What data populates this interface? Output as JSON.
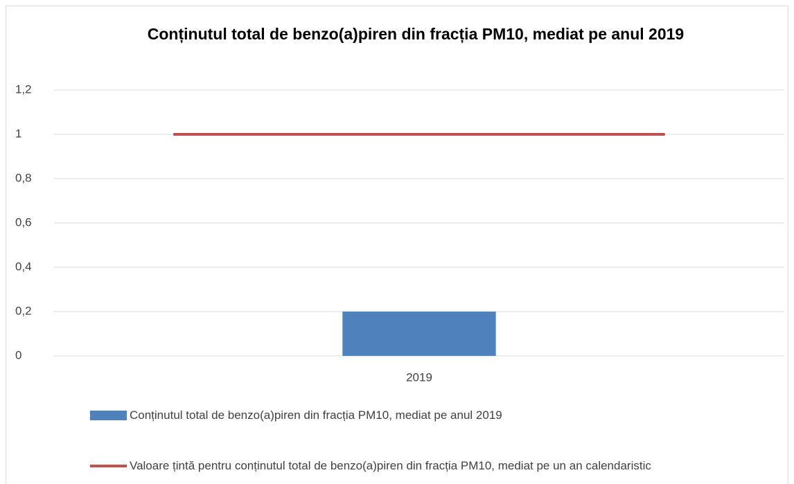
{
  "chart_data": {
    "type": "bar_line",
    "title": "Conținutul total de benzo(a)piren din fracția PM10, mediat pe anul 2019",
    "categories": [
      "2019"
    ],
    "series": [
      {
        "name": "Conținutul total de benzo(a)piren din fracția PM10, mediat pe anul 2019",
        "color": "#4f81bd",
        "kind": "bar",
        "values": [
          0.2
        ]
      },
      {
        "name": "Valoare țintă pentru conținutul total de benzo(a)piren din fracția PM10, mediat pe un an calendaristic",
        "color": "#c0504d",
        "kind": "line",
        "values": [
          1
        ]
      }
    ],
    "ylim": [
      0,
      1.2
    ],
    "yticks": [
      0,
      {
        "value": 0.2,
        "label": "0,2"
      },
      {
        "value": 0.4,
        "label": "0,4"
      },
      {
        "value": 0.6,
        "label": "0,6"
      },
      {
        "value": 0.8,
        "label": "0,8"
      },
      1,
      {
        "value": 1.2,
        "label": "1,2"
      }
    ],
    "grid": true,
    "legend": "bottom"
  }
}
